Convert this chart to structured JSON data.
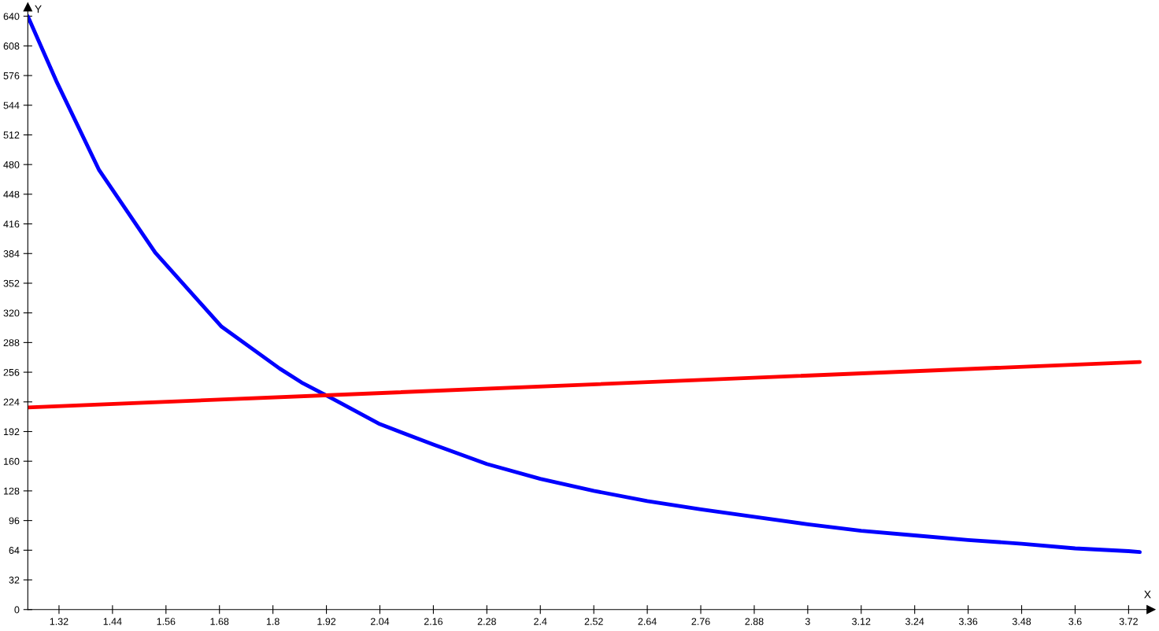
{
  "chart_data": {
    "type": "line",
    "xlabel": "X",
    "ylabel": "Y",
    "xlim": [
      1.25,
      3.77
    ],
    "ylim": [
      0,
      650
    ],
    "xticks": [
      1.32,
      1.44,
      1.56,
      1.68,
      1.8,
      1.92,
      2.04,
      2.16,
      2.28,
      2.4,
      2.52,
      2.64,
      2.76,
      2.88,
      3,
      3.12,
      3.24,
      3.36,
      3.48,
      3.6,
      3.72
    ],
    "yticks": [
      0,
      32,
      64,
      96,
      128,
      160,
      192,
      224,
      256,
      288,
      320,
      352,
      384,
      416,
      448,
      480,
      512,
      544,
      576,
      608,
      640
    ],
    "grid": false,
    "legend": false,
    "marker": "none",
    "line_style": "solid",
    "series": [
      {
        "color": "#0000ff",
        "x": [
          1.25,
          1.314,
          1.41,
          1.536,
          1.685,
          1.815,
          1.864,
          1.92,
          2.04,
          2.16,
          2.28,
          2.4,
          2.52,
          2.64,
          2.76,
          2.88,
          3.0,
          3.12,
          3.24,
          3.36,
          3.48,
          3.6,
          3.72,
          3.745
        ],
        "values": [
          640,
          570,
          474,
          385,
          305,
          260,
          245,
          231,
          200,
          178,
          157,
          141,
          128,
          117,
          108,
          100,
          92,
          85,
          80,
          75,
          71,
          66,
          63,
          62
        ]
      },
      {
        "color": "#ff0000",
        "x": [
          1.25,
          3.745
        ],
        "values": [
          218,
          267
        ]
      }
    ]
  }
}
